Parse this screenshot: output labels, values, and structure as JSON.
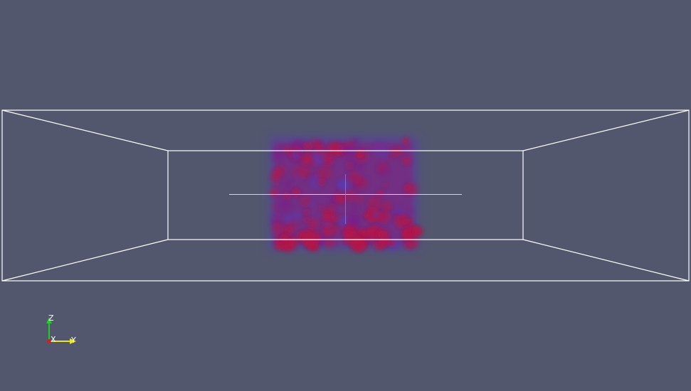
{
  "viewport": {
    "background_color": "#52576e",
    "wireframe_color": "#ffffff",
    "crosshair_color": "#e8e84a",
    "volume_colors": [
      "#b3124a",
      "#7a1f8a",
      "#5a3ab0"
    ]
  },
  "orientation_axes": {
    "z_label": "Z",
    "x_label": "X",
    "y_label": "Y",
    "z_color": "#22cc22",
    "y_color": "#e8e822",
    "x_color": "#cc2222"
  }
}
